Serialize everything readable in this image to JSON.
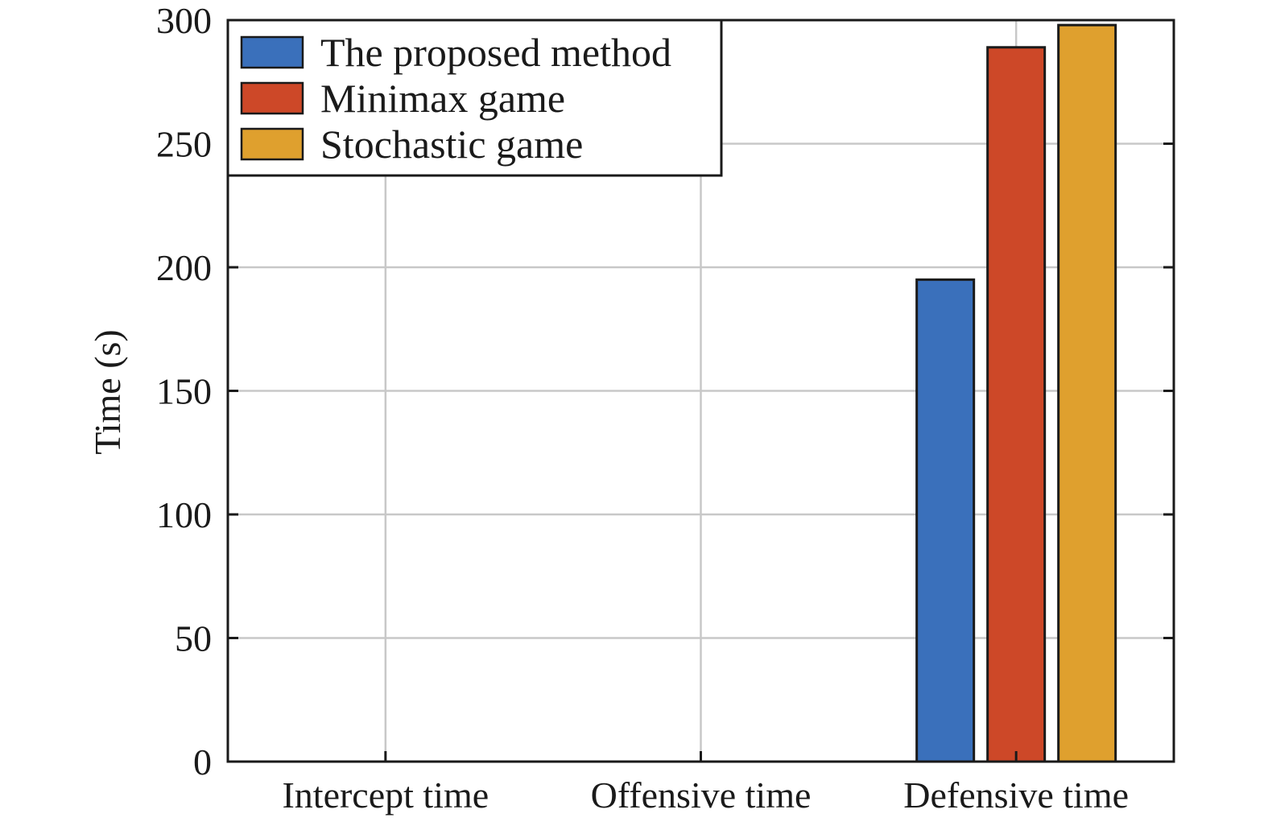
{
  "chart_data": {
    "type": "bar",
    "title": "",
    "xlabel": "",
    "ylabel": "Time (s)",
    "ylim": [
      0,
      300
    ],
    "yticks": [
      0,
      50,
      100,
      150,
      200,
      250,
      300
    ],
    "categories": [
      "Intercept time",
      "Offensive time",
      "Defensive time"
    ],
    "series": [
      {
        "name": "The proposed method",
        "color": "#3a70bb",
        "values": [
          0,
          0,
          195
        ]
      },
      {
        "name": "Minimax game",
        "color": "#cd4828",
        "values": [
          0,
          0,
          289
        ]
      },
      {
        "name": "Stochastic game",
        "color": "#dfa02e",
        "values": [
          0,
          0,
          298
        ]
      }
    ],
    "grid": true,
    "legend_position": "top-left"
  }
}
